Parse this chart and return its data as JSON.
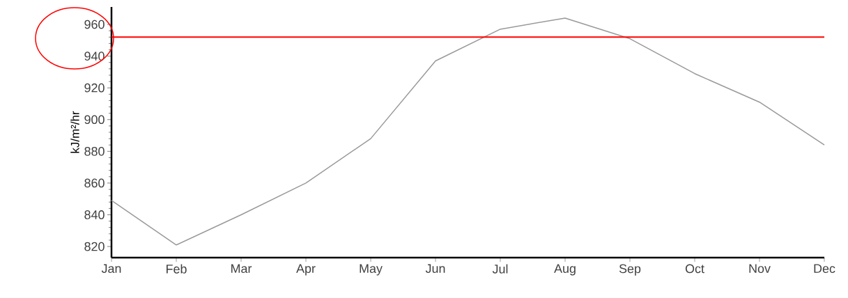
{
  "chart_data": {
    "type": "line",
    "ylabel": "kJ/m²/hr",
    "categories": [
      "Jan",
      "Feb",
      "Mar",
      "Apr",
      "May",
      "Jun",
      "Jul",
      "Aug",
      "Sep",
      "Oct",
      "Nov",
      "Dec"
    ],
    "series": [
      {
        "color": "#999999",
        "values": [
          849,
          821,
          840,
          860,
          888,
          937,
          957,
          964,
          951,
          929,
          911,
          884
        ]
      }
    ],
    "ylim": [
      813,
      971
    ],
    "yticks": [
      820,
      840,
      860,
      880,
      900,
      920,
      940,
      960
    ],
    "ref_lines": [
      {
        "axis": "y",
        "value": 952,
        "color": "#ff0000"
      }
    ],
    "grid": false,
    "marker": "none",
    "line_style": "solid"
  }
}
